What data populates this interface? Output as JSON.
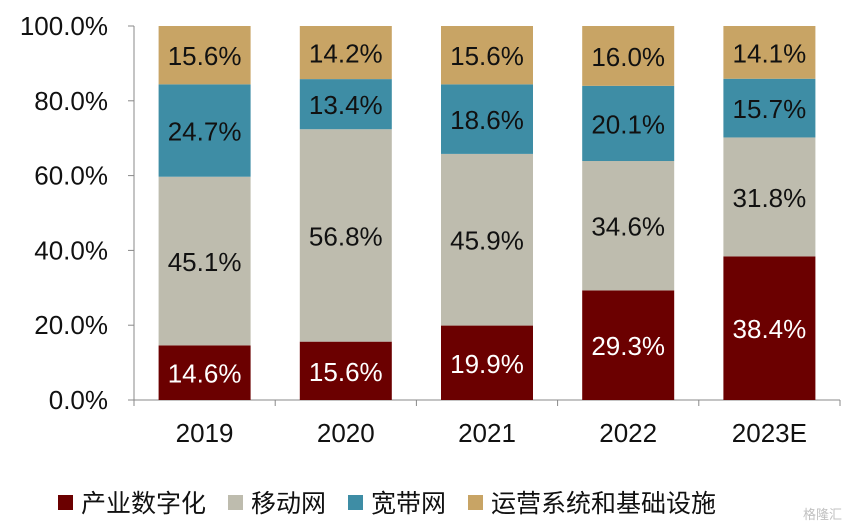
{
  "chart_data": {
    "type": "bar",
    "stacked": true,
    "categories": [
      "2019",
      "2020",
      "2021",
      "2022",
      "2023E"
    ],
    "ylim": [
      0,
      100
    ],
    "yticks": [
      "0.0%",
      "20.0%",
      "40.0%",
      "60.0%",
      "80.0%",
      "100.0%"
    ],
    "series": [
      {
        "name": "产业数字化",
        "color": "#6B0000",
        "label_color": "#ffffff",
        "values": [
          14.6,
          15.6,
          19.9,
          29.3,
          38.4
        ],
        "labels": [
          "14.6%",
          "15.6%",
          "19.9%",
          "29.3%",
          "38.4%"
        ]
      },
      {
        "name": "移动网",
        "color": "#BEBCAE",
        "label_color": "#111111",
        "values": [
          45.1,
          56.8,
          45.9,
          34.6,
          31.8
        ],
        "labels": [
          "45.1%",
          "56.8%",
          "45.9%",
          "34.6%",
          "31.8%"
        ]
      },
      {
        "name": "宽带网",
        "color": "#3E8DA5",
        "label_color": "#111111",
        "values": [
          24.7,
          13.4,
          18.6,
          20.1,
          15.7
        ],
        "labels": [
          "24.7%",
          "13.4%",
          "18.6%",
          "20.1%",
          "15.7%"
        ]
      },
      {
        "name": "运营系统和基础设施",
        "color": "#C8A465",
        "label_color": "#111111",
        "values": [
          15.6,
          14.2,
          15.6,
          16.0,
          14.1
        ],
        "labels": [
          "15.6%",
          "14.2%",
          "15.6%",
          "16.0%",
          "14.1%"
        ]
      }
    ],
    "legend_position": "bottom",
    "grid": false
  },
  "watermark": "格隆汇"
}
